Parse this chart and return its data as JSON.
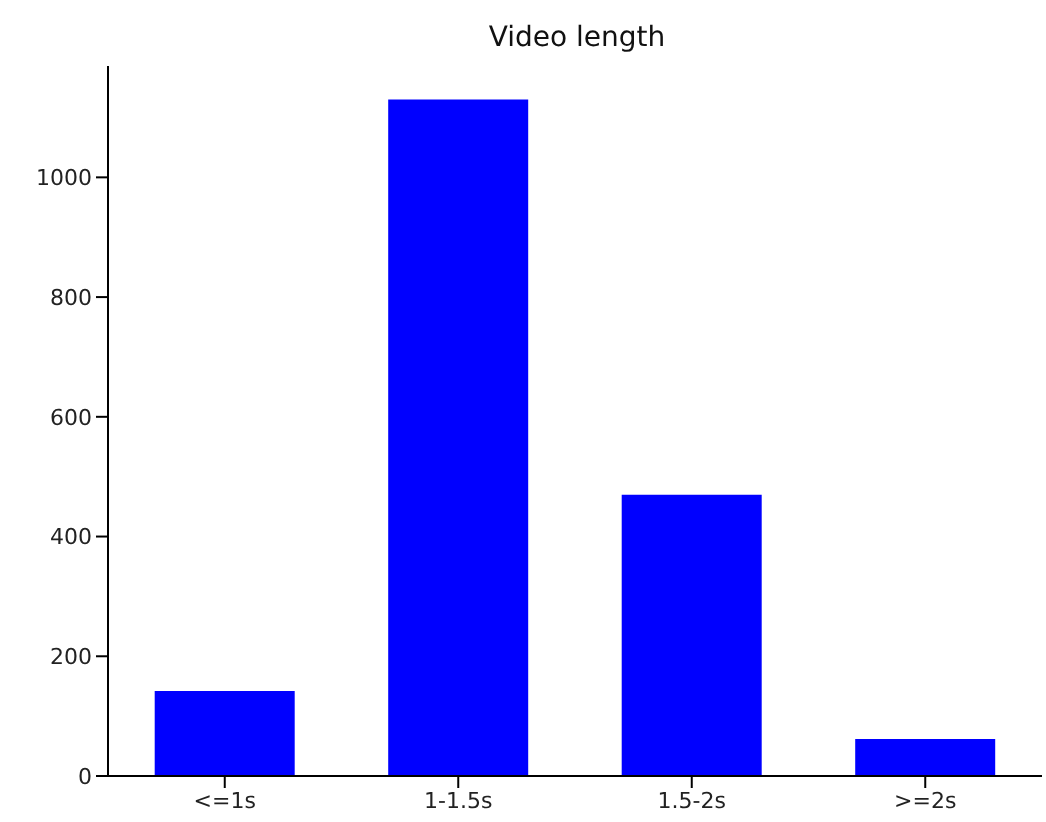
{
  "chart_data": {
    "type": "bar",
    "title": "Video length",
    "categories": [
      "<=1s",
      "1-1.5s",
      "1.5-2s",
      ">=2s"
    ],
    "values": [
      142,
      1130,
      470,
      62
    ],
    "color": "#0000ff",
    "ylim": [
      0,
      1186
    ],
    "yticks": [
      0,
      200,
      400,
      600,
      800,
      1000
    ],
    "grid": false
  }
}
